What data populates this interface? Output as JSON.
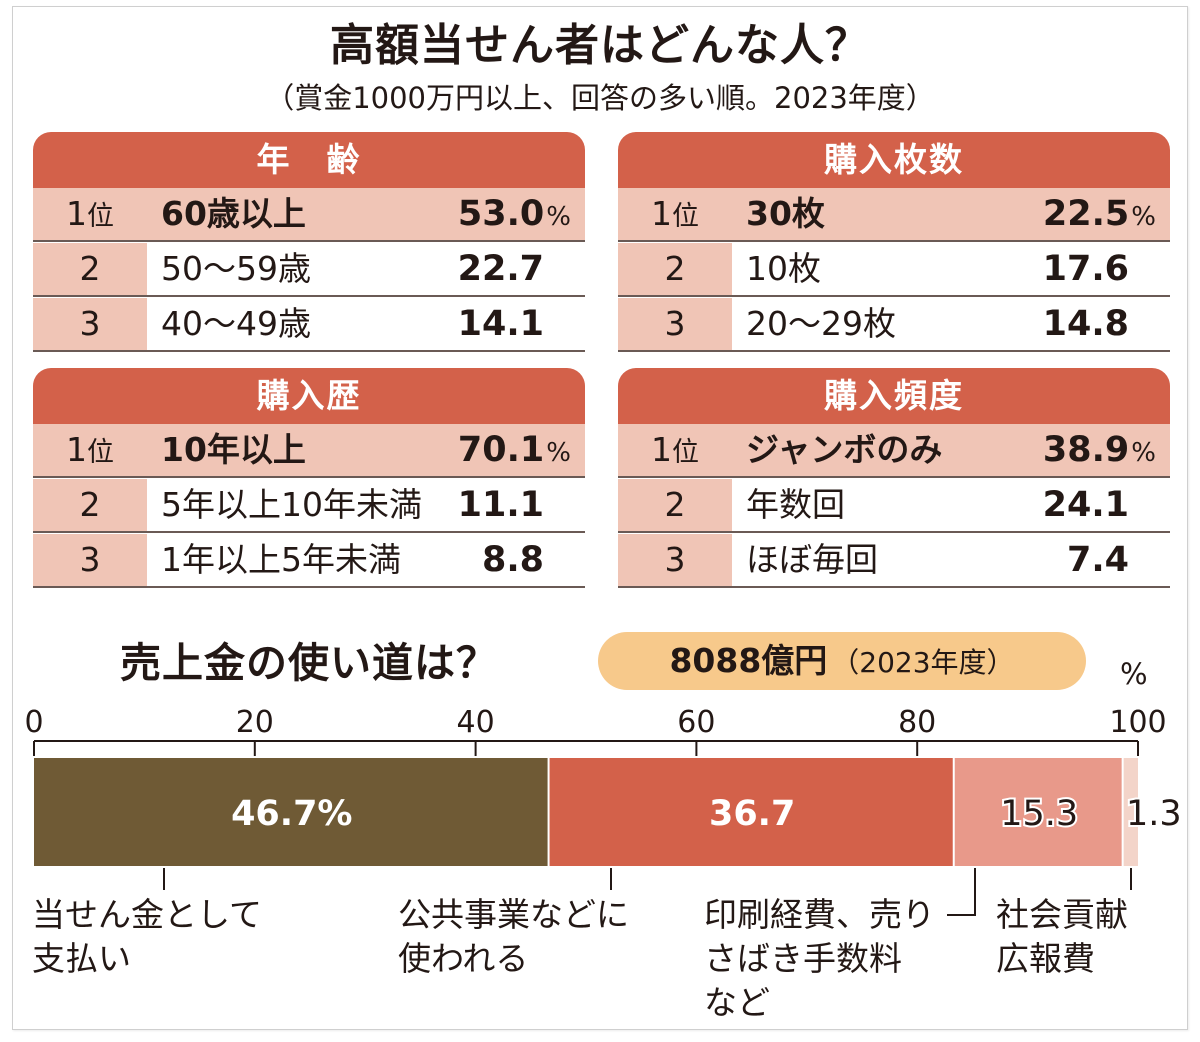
{
  "title": "高額当せん者はどんな人？",
  "subtitle": "（賞金1000万円以上、回答の多い順。2023年度）",
  "colors": {
    "header": "#d3614a",
    "rank_bg": "#f0c5b6",
    "label_bg": "#ffffff",
    "pill": "#f7c98b",
    "bar_payout": "#6f5a35",
    "bar_public": "#d3614a",
    "bar_printing": "#e8998a",
    "bar_social": "#f3d4c9"
  },
  "rankings": [
    {
      "title": "年　齢",
      "rows": [
        {
          "rank": "1",
          "suffix": "位",
          "label": "60歳以上",
          "value": "53.0",
          "unit": "%"
        },
        {
          "rank": "2",
          "suffix": "",
          "label": "50～59歳",
          "value": "22.7",
          "unit": ""
        },
        {
          "rank": "3",
          "suffix": "",
          "label": "40～49歳",
          "value": "14.1",
          "unit": ""
        }
      ]
    },
    {
      "title": "購入枚数",
      "rows": [
        {
          "rank": "1",
          "suffix": "位",
          "label": "30枚",
          "value": "22.5",
          "unit": "%"
        },
        {
          "rank": "2",
          "suffix": "",
          "label": "10枚",
          "value": "17.6",
          "unit": ""
        },
        {
          "rank": "3",
          "suffix": "",
          "label": "20～29枚",
          "value": "14.8",
          "unit": ""
        }
      ]
    },
    {
      "title": "購入歴",
      "rows": [
        {
          "rank": "1",
          "suffix": "位",
          "label": "10年以上",
          "value": "70.1",
          "unit": "%"
        },
        {
          "rank": "2",
          "suffix": "",
          "label": "5年以上10年未満",
          "value": "11.1",
          "unit": ""
        },
        {
          "rank": "3",
          "suffix": "",
          "label": "1年以上5年未満",
          "value": "8.8",
          "unit": ""
        }
      ]
    },
    {
      "title": "購入頻度",
      "rows": [
        {
          "rank": "1",
          "suffix": "位",
          "label": "ジャンボのみ",
          "value": "38.9",
          "unit": "%"
        },
        {
          "rank": "2",
          "suffix": "",
          "label": "年数回",
          "value": "24.1",
          "unit": ""
        },
        {
          "rank": "3",
          "suffix": "",
          "label": "ほぼ毎回",
          "value": "7.4",
          "unit": ""
        }
      ]
    }
  ],
  "usage": {
    "title": "売上金の使い道は？",
    "total_amount": "8088億円",
    "total_year": "（2023年度）",
    "unit": "%"
  },
  "chart_data": {
    "type": "bar",
    "orientation": "horizontal-stacked",
    "x_ticks": [
      "0",
      "20",
      "40",
      "60",
      "80",
      "100"
    ],
    "xlim": [
      0,
      100
    ],
    "categories": [
      "当せん金として支払い",
      "公共事業などに使われる",
      "印刷経費、売りさばき手数料など",
      "社会貢献広報費"
    ],
    "values": [
      46.7,
      36.7,
      15.3,
      1.3
    ],
    "value_labels": [
      "46.7%",
      "36.7",
      "15.3",
      "1.3"
    ],
    "legend_texts": [
      "当せん金として\n支払い",
      "公共事業などに\n使われる",
      "印刷経費、売り\nさばき手数料\nなど",
      "社会貢献\n広報費"
    ]
  }
}
